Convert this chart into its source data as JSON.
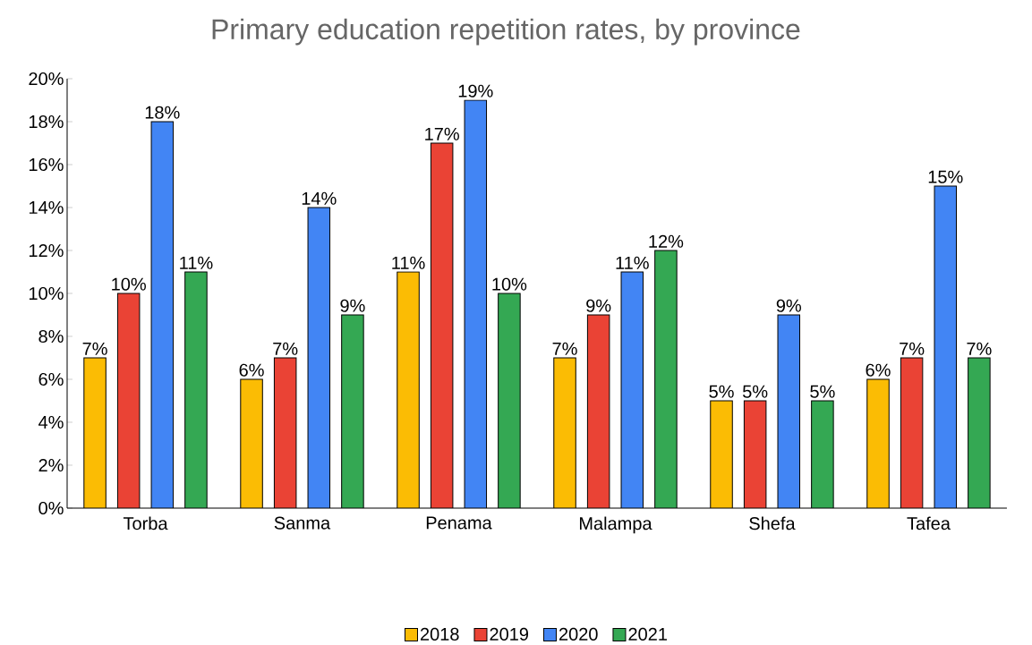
{
  "chart_data": {
    "type": "bar",
    "title": "Primary education repetition rates, by province",
    "categories": [
      "Torba",
      "Sanma",
      "Penama",
      "Malampa",
      "Shefa",
      "Tafea"
    ],
    "series": [
      {
        "name": "2018",
        "color": "#fbbc04",
        "values": [
          7,
          6,
          11,
          7,
          5,
          6
        ],
        "value_labels": [
          "7%",
          "6%",
          "11%",
          "7%",
          "5%",
          "6%"
        ]
      },
      {
        "name": "2019",
        "color": "#ea4335",
        "values": [
          10,
          7,
          17,
          9,
          5,
          7
        ],
        "value_labels": [
          "10%",
          "7%",
          "17%",
          "9%",
          "5%",
          "7%"
        ]
      },
      {
        "name": "2020",
        "color": "#4285f4",
        "values": [
          18,
          14,
          19,
          11,
          9,
          15
        ],
        "value_labels": [
          "18%",
          "14%",
          "19%",
          "11%",
          "9%",
          "15%"
        ]
      },
      {
        "name": "2021",
        "color": "#34a853",
        "values": [
          11,
          9,
          10,
          12,
          5,
          7
        ],
        "value_labels": [
          "11%",
          "9%",
          "10%",
          "12%",
          "5%",
          "7%"
        ]
      }
    ],
    "ylim": [
      0,
      20
    ],
    "yticks": [
      {
        "value": 0,
        "label": "0%"
      },
      {
        "value": 2,
        "label": "2%"
      },
      {
        "value": 4,
        "label": "4%"
      },
      {
        "value": 6,
        "label": "6%"
      },
      {
        "value": 8,
        "label": "8%"
      },
      {
        "value": 10,
        "label": "10%"
      },
      {
        "value": 12,
        "label": "12%"
      },
      {
        "value": 14,
        "label": "14%"
      },
      {
        "value": 16,
        "label": "16%"
      },
      {
        "value": 18,
        "label": "18%"
      },
      {
        "value": 20,
        "label": "20%"
      }
    ],
    "grid": false,
    "legend": "bottom"
  }
}
